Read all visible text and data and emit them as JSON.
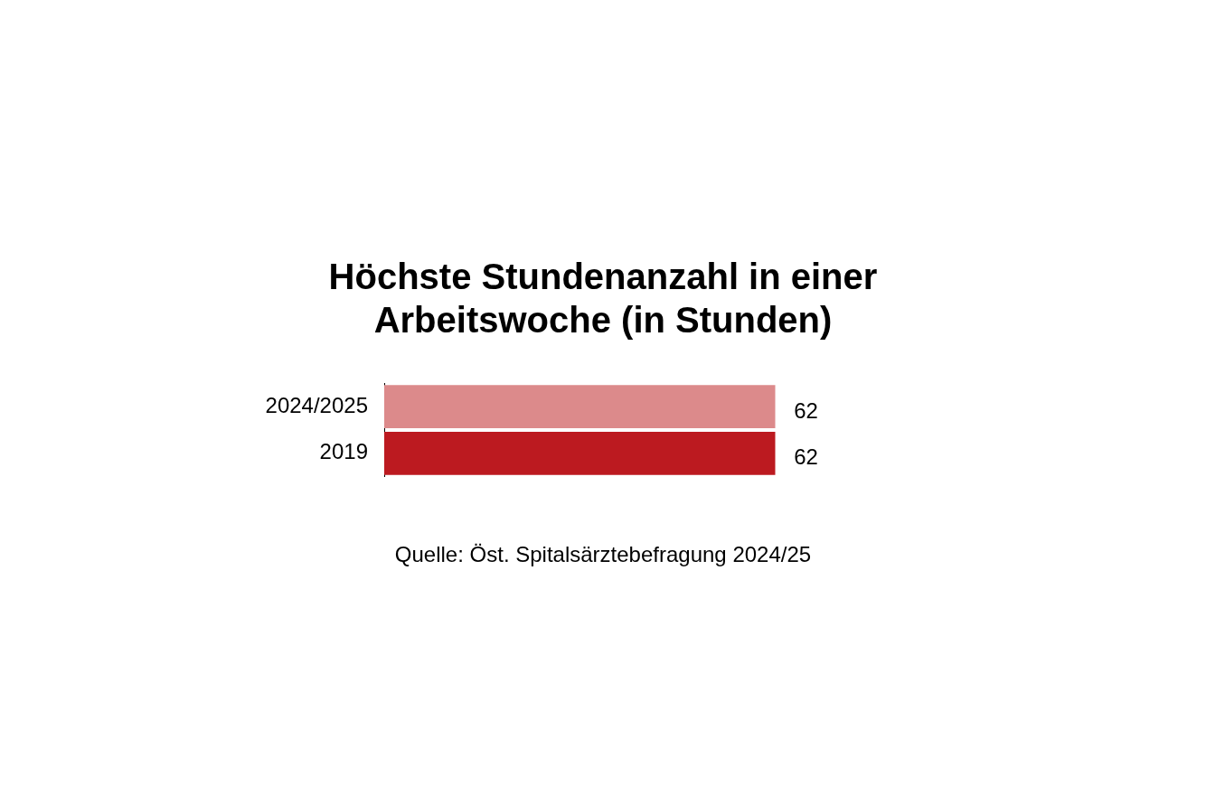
{
  "chart_data": {
    "type": "bar",
    "orientation": "horizontal",
    "title": "Höchste Stundenanzahl in einer Arbeitswoche (in Stunden)",
    "categories": [
      "2024/2025",
      "2019"
    ],
    "values": [
      62,
      62
    ],
    "colors": [
      "#dc8a8b",
      "#bc1a20"
    ],
    "data_labels": true,
    "legend": false,
    "annotations": [
      "Quelle: Öst. Spitalsärztebefragung 2024/25"
    ]
  }
}
